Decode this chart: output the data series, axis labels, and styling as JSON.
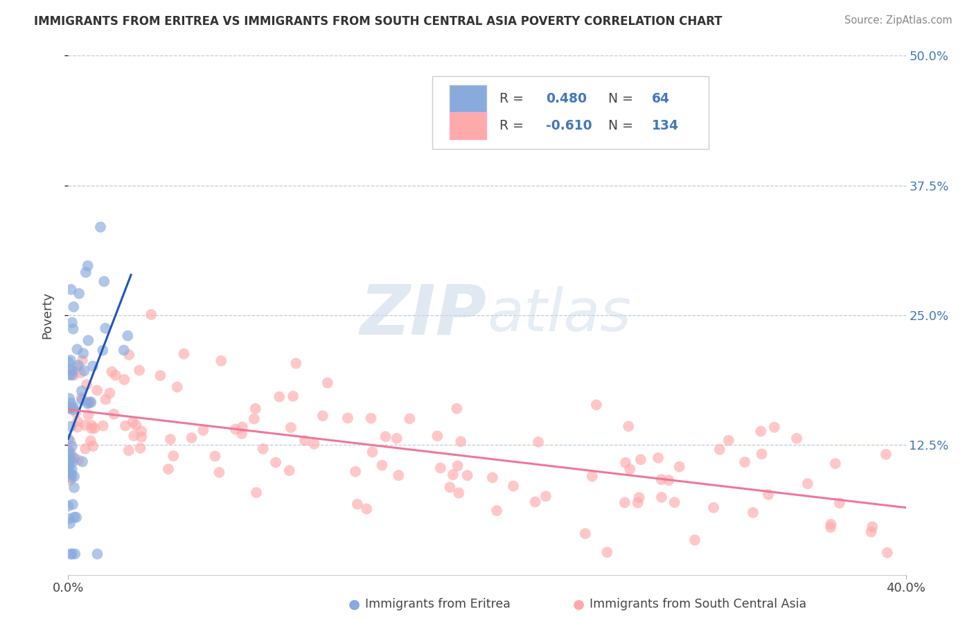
{
  "title": "IMMIGRANTS FROM ERITREA VS IMMIGRANTS FROM SOUTH CENTRAL ASIA POVERTY CORRELATION CHART",
  "source": "Source: ZipAtlas.com",
  "ylabel": "Poverty",
  "xlim": [
    0.0,
    0.4
  ],
  "ylim": [
    0.0,
    0.5
  ],
  "ytick_labels": [
    "12.5%",
    "25.0%",
    "37.5%",
    "50.0%"
  ],
  "ytick_vals": [
    0.125,
    0.25,
    0.375,
    0.5
  ],
  "blue_R": 0.48,
  "blue_N": 64,
  "pink_R": -0.61,
  "pink_N": 134,
  "blue_color": "#88AADD",
  "pink_color": "#FFAAAA",
  "blue_line_color": "#2255BB",
  "pink_line_color": "#EE7799",
  "legend_label_blue": "Immigrants from Eritrea",
  "legend_label_pink": "Immigrants from South Central Asia",
  "watermark_zip": "ZIP",
  "watermark_atlas": "atlas",
  "background_color": "#ffffff",
  "title_color": "#333333",
  "source_color": "#888888",
  "label_color": "#444444",
  "grid_color": "#BBCCDD",
  "tick_color": "#4477BB"
}
